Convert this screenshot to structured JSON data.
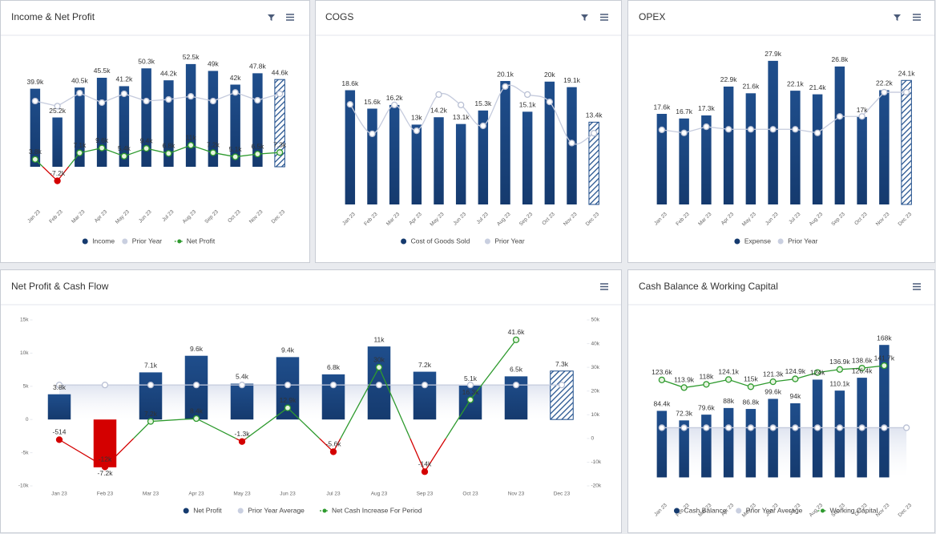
{
  "chart_data": [
    {
      "type": "bar",
      "title": "Income & Net Profit",
      "categories": [
        "Jan 23",
        "Feb 23",
        "Mar 23",
        "Apr 23",
        "May 23",
        "Jun 23",
        "Jul 23",
        "Aug 23",
        "Sep 23",
        "Oct 23",
        "Nov 23",
        "Dec 23"
      ],
      "series": [
        {
          "name": "Income",
          "kind": "bar",
          "color": "#1f4e8c",
          "values": [
            39900,
            25200,
            40500,
            45500,
            41200,
            50300,
            44200,
            52500,
            49000,
            42000,
            47800,
            44600
          ],
          "value_labels": [
            "39.9k",
            "25.2k",
            "40.5k",
            "45.5k",
            "41.2k",
            "50.3k",
            "44.2k",
            "52.5k",
            "49k",
            "42k",
            "47.8k",
            "44.6k"
          ]
        },
        {
          "name": "Prior Year",
          "kind": "line",
          "color": "#c5cbdd",
          "values": [
            33600,
            31000,
            37700,
            32800,
            37300,
            33600,
            34400,
            36000,
            33600,
            38000,
            34000,
            37300
          ]
        },
        {
          "name": "Net Profit",
          "kind": "line",
          "color": "#2e9a2e",
          "negative_color": "#d40000",
          "legend_symbol": "line",
          "values": [
            3800,
            -7200,
            7100,
            9600,
            5400,
            9400,
            6800,
            11000,
            7200,
            5100,
            6500,
            7300
          ],
          "value_labels": [
            "3.8k",
            "-7.2k",
            "7.1k",
            "9.6k",
            "5.4k",
            "9.4k",
            "6.8k",
            "11k",
            "7.2k",
            "5.1k",
            "6.5k",
            "7.3k"
          ]
        }
      ],
      "ylim": [
        -10000,
        60000
      ],
      "hatch_last": true
    },
    {
      "type": "bar",
      "title": "COGS",
      "categories": [
        "Jan 23",
        "Feb 23",
        "Mar 23",
        "Apr 23",
        "May 23",
        "Jun 23",
        "Jul 23",
        "Aug 23",
        "Sep 23",
        "Oct 23",
        "Nov 23",
        "Dec 23"
      ],
      "series": [
        {
          "name": "Cost of Goods Sold",
          "kind": "bar",
          "color": "#1f4e8c",
          "values": [
            18600,
            15600,
            16200,
            13000,
            14200,
            13100,
            15300,
            20100,
            15100,
            20000,
            19100,
            13400
          ],
          "value_labels": [
            "18.6k",
            "15.6k",
            "16.2k",
            "13k",
            "14.2k",
            "13.1k",
            "15.3k",
            "20.1k",
            "15.1k",
            "20k",
            "19.1k",
            "13.4k"
          ]
        },
        {
          "name": "Prior Year",
          "kind": "spline",
          "color": "#c5cbdd",
          "values": [
            16300,
            11500,
            16200,
            12000,
            17900,
            16200,
            12800,
            19200,
            17900,
            16700,
            10000,
            11600
          ]
        }
      ],
      "ylim": [
        0,
        25000
      ],
      "hatch_last": true
    },
    {
      "type": "bar",
      "title": "OPEX",
      "categories": [
        "Jan 23",
        "Feb 23",
        "Mar 23",
        "Apr 23",
        "May 23",
        "Jun 23",
        "Jul 23",
        "Aug 23",
        "Sep 23",
        "Oct 23",
        "Nov 23",
        "Dec 23"
      ],
      "series": [
        {
          "name": "Expense",
          "kind": "bar",
          "color": "#1f4e8c",
          "values": [
            17600,
            16700,
            17300,
            22900,
            21600,
            27900,
            22100,
            21400,
            26800,
            17000,
            22200,
            24100
          ],
          "value_labels": [
            "17.6k",
            "16.7k",
            "17.3k",
            "22.9k",
            "21.6k",
            "27.9k",
            "22.1k",
            "21.4k",
            "26.8k",
            "17k",
            "22.2k",
            "24.1k"
          ]
        },
        {
          "name": "Prior Year",
          "kind": "line",
          "color": "#c5cbdd",
          "values": [
            14500,
            13900,
            15100,
            14600,
            14600,
            14600,
            14600,
            13900,
            17100,
            17100,
            21800,
            21800
          ]
        }
      ],
      "ylim": [
        0,
        30000
      ],
      "hatch_last": true
    },
    {
      "type": "bar",
      "title": "Net Profit & Cash Flow",
      "categories": [
        "Jan 23",
        "Feb 23",
        "Mar 23",
        "Apr 23",
        "May 23",
        "Jun 23",
        "Jul 23",
        "Aug 23",
        "Sep 23",
        "Oct 23",
        "Nov 23",
        "Dec 23"
      ],
      "series": [
        {
          "name": "Net Profit",
          "kind": "bar",
          "color": "#1f4e8c",
          "negative_color": "#d40000",
          "values": [
            3800,
            -7200,
            7100,
            9600,
            5400,
            9400,
            6800,
            11000,
            7200,
            5100,
            6500,
            7300
          ],
          "value_labels": [
            "3.8k",
            "-7.2k",
            "7.1k",
            "9.6k",
            "5.4k",
            "9.4k",
            "6.8k",
            "11k",
            "7.2k",
            "5.1k",
            "6.5k",
            "7.3k"
          ]
        },
        {
          "name": "Prior Year Average",
          "kind": "line",
          "color": "#c5cbdd",
          "area": true,
          "values": [
            5200,
            5200,
            5200,
            5200,
            5200,
            5200,
            5200,
            5200,
            5200,
            5200,
            5200,
            5200
          ]
        },
        {
          "name": "Net Cash Increase For Period",
          "kind": "line",
          "axis": "y2",
          "color": "#2e9a2e",
          "negative_color": "#d40000",
          "legend_symbol": "line",
          "values": [
            -514,
            -12000,
            7200,
            8400,
            -1300,
            12900,
            -5600,
            30000,
            -14000,
            16300,
            41600,
            null
          ],
          "value_labels": [
            "-514",
            "-12k",
            "7.2k",
            "8.4k",
            "-1.3k",
            "12.9k",
            "-5.6k",
            "30k",
            "-14k",
            "16.3k",
            "41.6k",
            null
          ]
        }
      ],
      "ylim": [
        -10000,
        15000
      ],
      "yticks": [
        {
          "value": 15000,
          "label": "15k"
        },
        {
          "value": 10000,
          "label": "10k"
        },
        {
          "value": 5000,
          "label": "5k"
        },
        0,
        {
          "value": -5000,
          "label": "-5k"
        },
        {
          "value": -10000,
          "label": "-10k"
        }
      ],
      "y2lim": [
        -20000,
        50000
      ],
      "y2ticks": [
        {
          "value": 50000,
          "label": "50k"
        },
        {
          "value": 40000,
          "label": "40k"
        },
        {
          "value": 30000,
          "label": "30k"
        },
        {
          "value": 20000,
          "label": "20k"
        },
        {
          "value": 10000,
          "label": "10k"
        },
        0,
        {
          "value": -10000,
          "label": "-10k"
        },
        {
          "value": -20000,
          "label": "-20k"
        }
      ],
      "hatch_last": true
    },
    {
      "type": "bar",
      "title": "Cash Balance & Working Capital",
      "categories": [
        "Jan 23",
        "Feb 23",
        "Mar 23",
        "Apr 23",
        "May 23",
        "Jun 23",
        "Jul 23",
        "Aug 23",
        "Sep 23",
        "Oct 23",
        "Nov 23",
        "Dec 23"
      ],
      "series": [
        {
          "name": "Cash Balance",
          "kind": "bar",
          "color": "#1f4e8c",
          "values": [
            84400,
            72300,
            79600,
            88000,
            86800,
            99600,
            94000,
            124000,
            110100,
            126400,
            168000,
            null
          ],
          "value_labels": [
            "84.4k",
            "72.3k",
            "79.6k",
            "88k",
            "86.8k",
            "99.6k",
            "94k",
            "124k",
            "110.1k",
            "126.4k",
            "168k",
            null
          ]
        },
        {
          "name": "Prior Year Average",
          "kind": "line",
          "color": "#c5cbdd",
          "area": true,
          "values": [
            63000,
            63000,
            63000,
            63000,
            63000,
            63000,
            63000,
            63000,
            63000,
            63000,
            63000,
            63000
          ]
        },
        {
          "name": "Working Capital",
          "kind": "line",
          "color": "#2e9a2e",
          "legend_symbol": "line",
          "values": [
            123600,
            113900,
            118000,
            124100,
            115000,
            121300,
            124900,
            133000,
            136900,
            138600,
            141700,
            null
          ],
          "value_labels": [
            "123.6k",
            "113.9k",
            "118k",
            "124.1k",
            "115k",
            "121.3k",
            "124.9k",
            null,
            "136.9k",
            "138.6k",
            "141.7k",
            null
          ]
        }
      ],
      "ylim": [
        -25000,
        180000
      ],
      "hatch_last": false
    }
  ]
}
